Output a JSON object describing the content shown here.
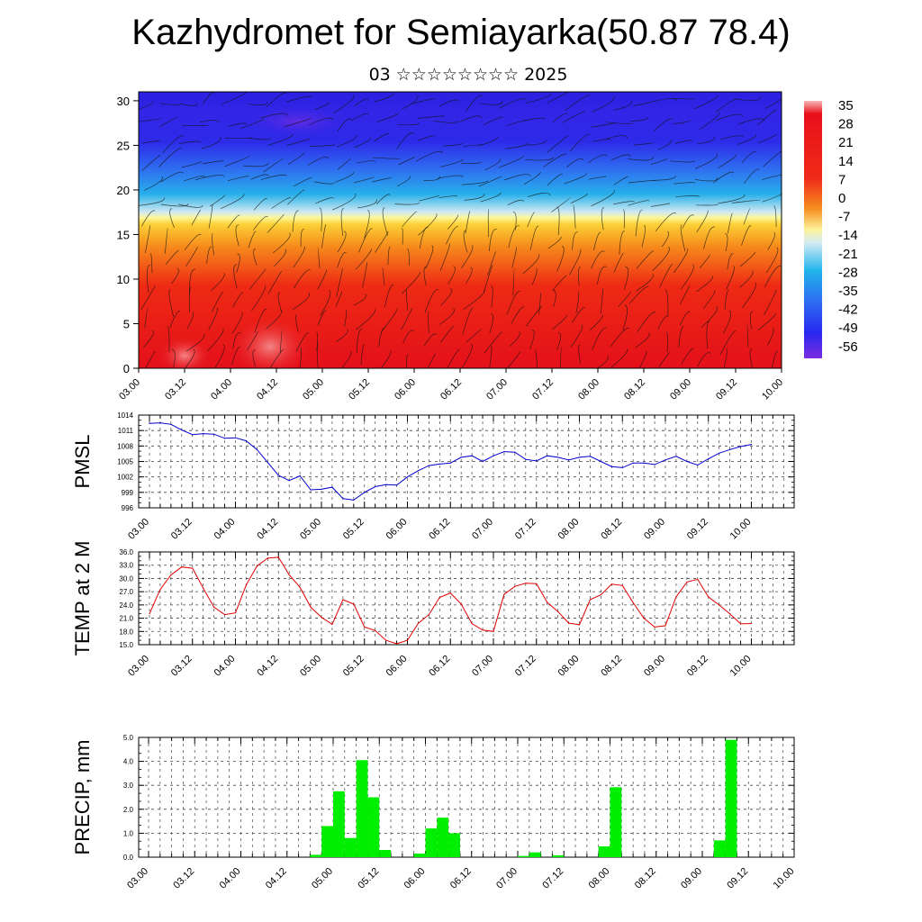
{
  "page": {
    "title": "Kazhydromet for Semiayarka(50.87 78.4)",
    "subtitle": "03 ☆☆☆☆☆☆☆☆ 2025"
  },
  "chart_data": [
    {
      "type": "heatmap",
      "name": "cross-section",
      "ylim": [
        0,
        31
      ],
      "y_ticks": [
        0,
        5,
        10,
        15,
        20,
        25,
        30
      ],
      "x_ticks": [
        "03.00",
        "03.12",
        "04.00",
        "04.12",
        "05.00",
        "05.12",
        "06.00",
        "06.12",
        "07.00",
        "07.12",
        "08.00",
        "08.12",
        "09.00",
        "09.12",
        "10.00"
      ],
      "colorbar_labels": [
        "35",
        "28",
        "21",
        "14",
        "7",
        "0",
        "-7",
        "-14",
        "-21",
        "-28",
        "-35",
        "-42",
        "-49",
        "-56"
      ],
      "colors": {
        "warm": "#e8141c",
        "orange": "#f5a21a",
        "yellow": "#fdfd9a",
        "cyan": "#20b4ec",
        "blue": "#2a2af0",
        "violet": "#7b2de0"
      }
    },
    {
      "type": "line",
      "ylabel": "PMSL",
      "ylim": [
        996,
        1014
      ],
      "y_ticks": [
        "996",
        "999",
        "1002",
        "1005",
        "1008",
        "1011",
        "1014"
      ],
      "x_ticks": [
        "03.00",
        "03.12",
        "04.00",
        "04.12",
        "05.00",
        "05.12",
        "06.00",
        "06.12",
        "07.00",
        "07.12",
        "08.00",
        "08.12",
        "09.00",
        "09.12",
        "10.00"
      ],
      "color": "#0000cc",
      "x": [
        0,
        0.125,
        0.25,
        0.375,
        0.5,
        0.625,
        0.75,
        0.875,
        1,
        1.125,
        1.25,
        1.375,
        1.5,
        1.625,
        1.75,
        1.875,
        2,
        2.125,
        2.25,
        2.375,
        2.5,
        2.625,
        2.75,
        2.875,
        3,
        3.125,
        3.25,
        3.375,
        3.5,
        3.625,
        3.75,
        3.875,
        4,
        4.125,
        4.25,
        4.375,
        4.5,
        4.625,
        4.75,
        4.875,
        5,
        5.125,
        5.25,
        5.375,
        5.5,
        5.625,
        5.75,
        5.875,
        6,
        6.125,
        6.25,
        6.375,
        6.5,
        6.625,
        6.75,
        6.875,
        7
      ],
      "values": [
        1012.4,
        1012.5,
        1012.2,
        1011.1,
        1010.2,
        1010.4,
        1010.3,
        1009.5,
        1009.6,
        1009.0,
        1007.3,
        1004.8,
        1002.3,
        1001.3,
        1002.2,
        999.5,
        999.6,
        1000.0,
        997.8,
        997.5,
        999.0,
        1000.1,
        1000.5,
        1000.4,
        1002.0,
        1003.2,
        1004.2,
        1004.5,
        1004.7,
        1005.8,
        1006.1,
        1005.0,
        1006.1,
        1006.9,
        1006.8,
        1005.4,
        1005.1,
        1006.1,
        1005.8,
        1005.3,
        1005.8,
        1006.0,
        1005.0,
        1004.0,
        1003.8,
        1004.7,
        1004.7,
        1004.4,
        1005.3,
        1006.0,
        1005.0,
        1004.3,
        1005.5,
        1006.6,
        1007.3,
        1007.9,
        1008.3
      ]
    },
    {
      "type": "line",
      "ylabel": "TEMP at 2 M",
      "ylim": [
        15,
        36
      ],
      "y_ticks": [
        "15.0",
        "18.0",
        "21.0",
        "24.0",
        "27.0",
        "30.0",
        "33.0",
        "36.0"
      ],
      "x_ticks": [
        "03.00",
        "03.12",
        "04.00",
        "04.12",
        "05.00",
        "05.12",
        "06.00",
        "06.12",
        "07.00",
        "07.12",
        "08.00",
        "08.12",
        "09.00",
        "09.12",
        "10.00"
      ],
      "color": "#e00000",
      "x": [
        0,
        0.125,
        0.25,
        0.375,
        0.5,
        0.625,
        0.75,
        0.875,
        1,
        1.125,
        1.25,
        1.375,
        1.5,
        1.625,
        1.75,
        1.875,
        2,
        2.125,
        2.25,
        2.375,
        2.5,
        2.625,
        2.75,
        2.875,
        3,
        3.125,
        3.25,
        3.375,
        3.5,
        3.625,
        3.75,
        3.875,
        4,
        4.125,
        4.25,
        4.375,
        4.5,
        4.625,
        4.75,
        4.875,
        5,
        5.125,
        5.25,
        5.375,
        5.5,
        5.625,
        5.75,
        5.875,
        6,
        6.125,
        6.25,
        6.375,
        6.5,
        6.625,
        6.75,
        6.875,
        7
      ],
      "values": [
        22.0,
        27.5,
        30.8,
        32.6,
        32.3,
        27.8,
        23.5,
        21.8,
        22.2,
        28.5,
        32.8,
        34.6,
        34.8,
        30.8,
        28.0,
        23.5,
        21.2,
        19.6,
        25.2,
        24.2,
        19.0,
        18.2,
        16.0,
        15.2,
        16.0,
        19.8,
        21.8,
        25.7,
        26.7,
        24.2,
        19.8,
        18.3,
        18.0,
        26.4,
        28.2,
        28.9,
        28.8,
        24.6,
        22.5,
        19.9,
        19.5,
        25.2,
        26.3,
        28.7,
        28.4,
        24.5,
        21.0,
        19.0,
        19.3,
        25.8,
        29.2,
        29.8,
        25.8,
        24.0,
        22.0,
        19.7,
        19.8
      ]
    },
    {
      "type": "bar",
      "ylabel": "PRECIP, mm",
      "ylim": [
        0,
        5
      ],
      "y_ticks": [
        "0.0",
        "1.0",
        "2.0",
        "3.0",
        "4.0",
        "5.0"
      ],
      "x_ticks": [
        "03.00",
        "03.12",
        "04.00",
        "04.12",
        "05.00",
        "05.12",
        "06.00",
        "06.12",
        "07.00",
        "07.12",
        "08.00",
        "08.12",
        "09.00",
        "09.12",
        "10.00"
      ],
      "color": "#00ee00",
      "x": [
        1.875,
        2.0,
        2.125,
        2.25,
        2.375,
        2.5,
        2.625,
        2.75,
        2.875,
        3.0,
        3.125,
        3.25,
        3.375,
        3.5,
        3.625,
        3.75,
        3.875,
        4.0,
        4.125,
        4.25,
        4.375,
        4.5,
        4.625,
        4.75,
        4.875,
        5.0,
        5.125,
        5.25,
        5.375,
        5.5,
        5.625,
        5.75,
        5.875,
        6.0,
        6.125,
        6.25,
        6.375,
        6.5,
        6.625,
        6.75,
        6.875,
        7.0
      ],
      "values": [
        0.1,
        1.3,
        2.75,
        0.8,
        4.05,
        2.5,
        0.3,
        0,
        0,
        0.15,
        1.2,
        1.65,
        1.0,
        0,
        0,
        0,
        0,
        0,
        0.05,
        0.2,
        0,
        0.08,
        0,
        0,
        0,
        0.45,
        2.92,
        0,
        0,
        0,
        0,
        0,
        0,
        0,
        0,
        0.7,
        4.9,
        0,
        0,
        0,
        0,
        0
      ]
    }
  ]
}
